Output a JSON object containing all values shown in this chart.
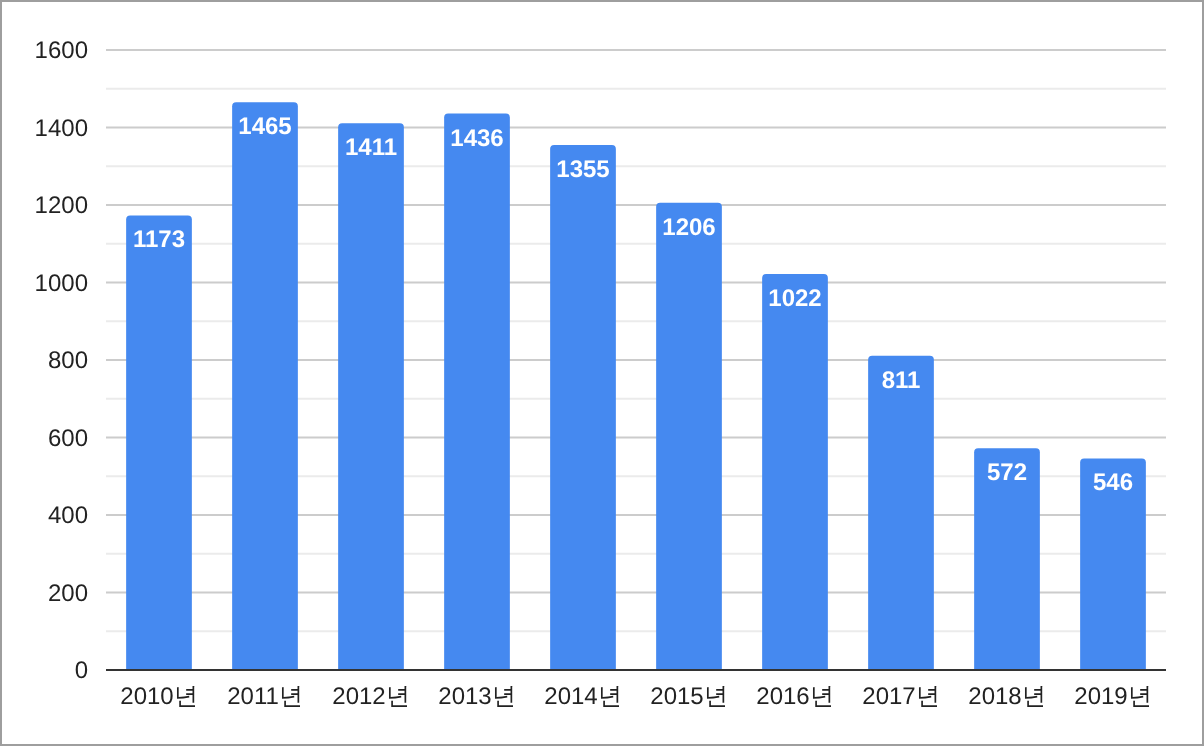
{
  "chart_data": {
    "type": "bar",
    "categories": [
      "2010년",
      "2011년",
      "2012년",
      "2013년",
      "2014년",
      "2015년",
      "2016년",
      "2017년",
      "2018년",
      "2019년"
    ],
    "values": [
      1173,
      1465,
      1411,
      1436,
      1355,
      1206,
      1022,
      811,
      572,
      546
    ],
    "color": "#4589f0",
    "data_labels": true,
    "grid": "y",
    "ylim": [
      0,
      1600
    ],
    "yticks": [
      0,
      {
        "value": 100,
        "label": null
      },
      200,
      {
        "value": 300,
        "label": null
      },
      400,
      {
        "value": 500,
        "label": null
      },
      600,
      {
        "value": 700,
        "label": null
      },
      800,
      {
        "value": 900,
        "label": null
      },
      1000,
      {
        "value": 1100,
        "label": null
      },
      1200,
      {
        "value": 1300,
        "label": null
      },
      1400,
      {
        "value": 1500,
        "label": null
      },
      1600
    ]
  }
}
